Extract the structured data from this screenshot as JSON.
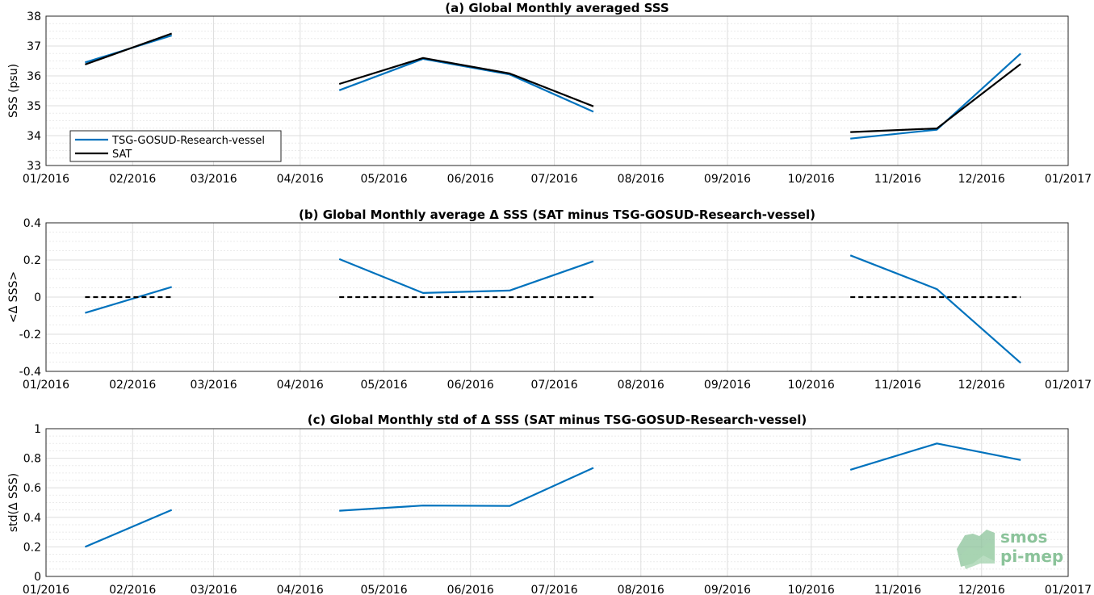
{
  "chart_data": [
    {
      "type": "line",
      "title": "(a) Global Monthly averaged SSS",
      "ylabel": "SSS (psu)",
      "xlabel": "",
      "x_ticks": [
        "01/2016",
        "02/2016",
        "03/2016",
        "04/2016",
        "05/2016",
        "06/2016",
        "07/2016",
        "08/2016",
        "09/2016",
        "10/2016",
        "11/2016",
        "12/2016",
        "01/2017"
      ],
      "y_ticks": [
        "33",
        "34",
        "35",
        "36",
        "37",
        "38"
      ],
      "ylim": [
        33,
        38
      ],
      "grid": true,
      "legend_position": "bottom-left",
      "series": [
        {
          "name": "TSG-GOSUD-Research-vessel",
          "color": "#0072bd",
          "segments": [
            [
              [
                "2016-01-15",
                36.45
              ],
              [
                "2016-02-15",
                37.35
              ]
            ],
            [
              [
                "2016-04-15",
                35.52
              ],
              [
                "2016-05-15",
                36.57
              ],
              [
                "2016-06-15",
                36.05
              ],
              [
                "2016-07-15",
                34.8
              ]
            ],
            [
              [
                "2016-10-15",
                33.9
              ],
              [
                "2016-11-15",
                34.2
              ],
              [
                "2016-12-15",
                36.75
              ]
            ]
          ]
        },
        {
          "name": "SAT",
          "color": "#000000",
          "segments": [
            [
              [
                "2016-01-15",
                36.38
              ],
              [
                "2016-02-15",
                37.42
              ]
            ],
            [
              [
                "2016-04-15",
                35.73
              ],
              [
                "2016-05-15",
                36.6
              ],
              [
                "2016-06-15",
                36.08
              ],
              [
                "2016-07-15",
                34.98
              ]
            ],
            [
              [
                "2016-10-15",
                34.12
              ],
              [
                "2016-11-15",
                34.24
              ],
              [
                "2016-12-15",
                36.4
              ]
            ]
          ]
        }
      ]
    },
    {
      "type": "line",
      "title": "(b) Global Monthly average Δ SSS (SAT minus TSG-GOSUD-Research-vessel)",
      "ylabel": "<Δ SSS>",
      "xlabel": "",
      "x_ticks": [
        "01/2016",
        "02/2016",
        "03/2016",
        "04/2016",
        "05/2016",
        "06/2016",
        "07/2016",
        "08/2016",
        "09/2016",
        "10/2016",
        "11/2016",
        "12/2016",
        "01/2017"
      ],
      "y_ticks": [
        "-0.4",
        "-0.2",
        "0",
        "0.2",
        "0.4"
      ],
      "ylim": [
        -0.4,
        0.4
      ],
      "grid": true,
      "series": [
        {
          "color": "#0072bd",
          "segments": [
            [
              [
                "2016-01-15",
                -0.085
              ],
              [
                "2016-02-15",
                0.055
              ]
            ],
            [
              [
                "2016-04-15",
                0.205
              ],
              [
                "2016-05-15",
                0.022
              ],
              [
                "2016-06-15",
                0.035
              ],
              [
                "2016-07-15",
                0.193
              ]
            ],
            [
              [
                "2016-10-15",
                0.225
              ],
              [
                "2016-11-15",
                0.043
              ],
              [
                "2016-12-15",
                -0.355
              ]
            ]
          ]
        },
        {
          "color": "#000000",
          "style": "dashed",
          "segments": [
            [
              [
                "2016-01-15",
                0
              ],
              [
                "2016-02-15",
                0
              ]
            ],
            [
              [
                "2016-04-15",
                0
              ],
              [
                "2016-07-15",
                0
              ]
            ],
            [
              [
                "2016-10-15",
                0
              ],
              [
                "2016-12-15",
                0
              ]
            ]
          ]
        }
      ]
    },
    {
      "type": "line",
      "title": "(c) Global Monthly std of Δ SSS (SAT minus TSG-GOSUD-Research-vessel)",
      "ylabel": "std(Δ SSS)",
      "xlabel": "",
      "x_ticks": [
        "01/2016",
        "02/2016",
        "03/2016",
        "04/2016",
        "05/2016",
        "06/2016",
        "07/2016",
        "08/2016",
        "09/2016",
        "10/2016",
        "11/2016",
        "12/2016",
        "01/2017"
      ],
      "y_ticks": [
        "0",
        "0.2",
        "0.4",
        "0.6",
        "0.8",
        "1"
      ],
      "ylim": [
        0,
        1
      ],
      "grid": true,
      "series": [
        {
          "color": "#0072bd",
          "segments": [
            [
              [
                "2016-01-15",
                0.2
              ],
              [
                "2016-02-15",
                0.45
              ]
            ],
            [
              [
                "2016-04-15",
                0.445
              ],
              [
                "2016-05-15",
                0.48
              ],
              [
                "2016-06-15",
                0.477
              ],
              [
                "2016-07-15",
                0.735
              ]
            ],
            [
              [
                "2016-10-15",
                0.722
              ],
              [
                "2016-11-15",
                0.9
              ],
              [
                "2016-12-15",
                0.788
              ]
            ]
          ]
        }
      ]
    }
  ],
  "logo": {
    "line1": "smos",
    "line2": "pi-mep"
  }
}
